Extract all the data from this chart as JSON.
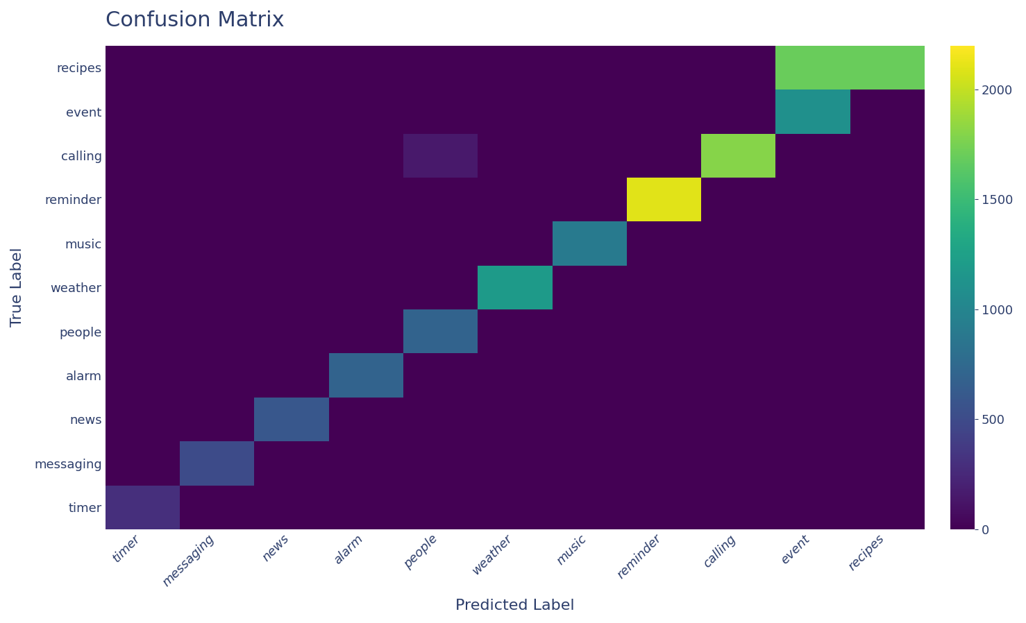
{
  "labels_y": [
    "recipes",
    "event",
    "calling",
    "reminder",
    "music",
    "weather",
    "people",
    "alarm",
    "news",
    "messaging",
    "timer"
  ],
  "labels_x": [
    "timer",
    "messaging",
    "news",
    "alarm",
    "people",
    "weather",
    "music",
    "reminder",
    "calling",
    "event",
    "recipes"
  ],
  "matrix": [
    [
      0,
      0,
      0,
      0,
      0,
      0,
      0,
      0,
      0,
      1700,
      1700
    ],
    [
      0,
      0,
      0,
      0,
      0,
      0,
      0,
      0,
      0,
      1100,
      0
    ],
    [
      0,
      0,
      0,
      0,
      150,
      0,
      0,
      0,
      1800,
      0,
      0
    ],
    [
      0,
      0,
      0,
      0,
      0,
      0,
      0,
      2100,
      0,
      0,
      0
    ],
    [
      0,
      0,
      0,
      0,
      0,
      0,
      900,
      0,
      0,
      0,
      0
    ],
    [
      0,
      0,
      0,
      0,
      0,
      1200,
      0,
      0,
      0,
      0,
      0
    ],
    [
      0,
      0,
      0,
      0,
      700,
      0,
      0,
      0,
      0,
      0,
      0
    ],
    [
      0,
      0,
      0,
      700,
      0,
      0,
      0,
      0,
      0,
      0,
      0
    ],
    [
      0,
      0,
      600,
      0,
      0,
      0,
      0,
      0,
      0,
      0,
      0
    ],
    [
      0,
      500,
      0,
      0,
      0,
      0,
      0,
      0,
      0,
      0,
      0
    ],
    [
      300,
      0,
      0,
      0,
      0,
      0,
      0,
      0,
      0,
      0,
      0
    ]
  ],
  "title": "Confusion Matrix",
  "xlabel": "Predicted Label",
  "ylabel": "True Label",
  "cmap": "viridis",
  "vmin": 0,
  "vmax": 2200,
  "colorbar_ticks": [
    0,
    500,
    1000,
    1500,
    2000
  ],
  "background_color": "#ffffff",
  "title_color": "#2d3e6b",
  "label_color": "#2d3e6b",
  "title_fontsize": 22,
  "axis_label_fontsize": 16,
  "tick_fontsize": 13
}
